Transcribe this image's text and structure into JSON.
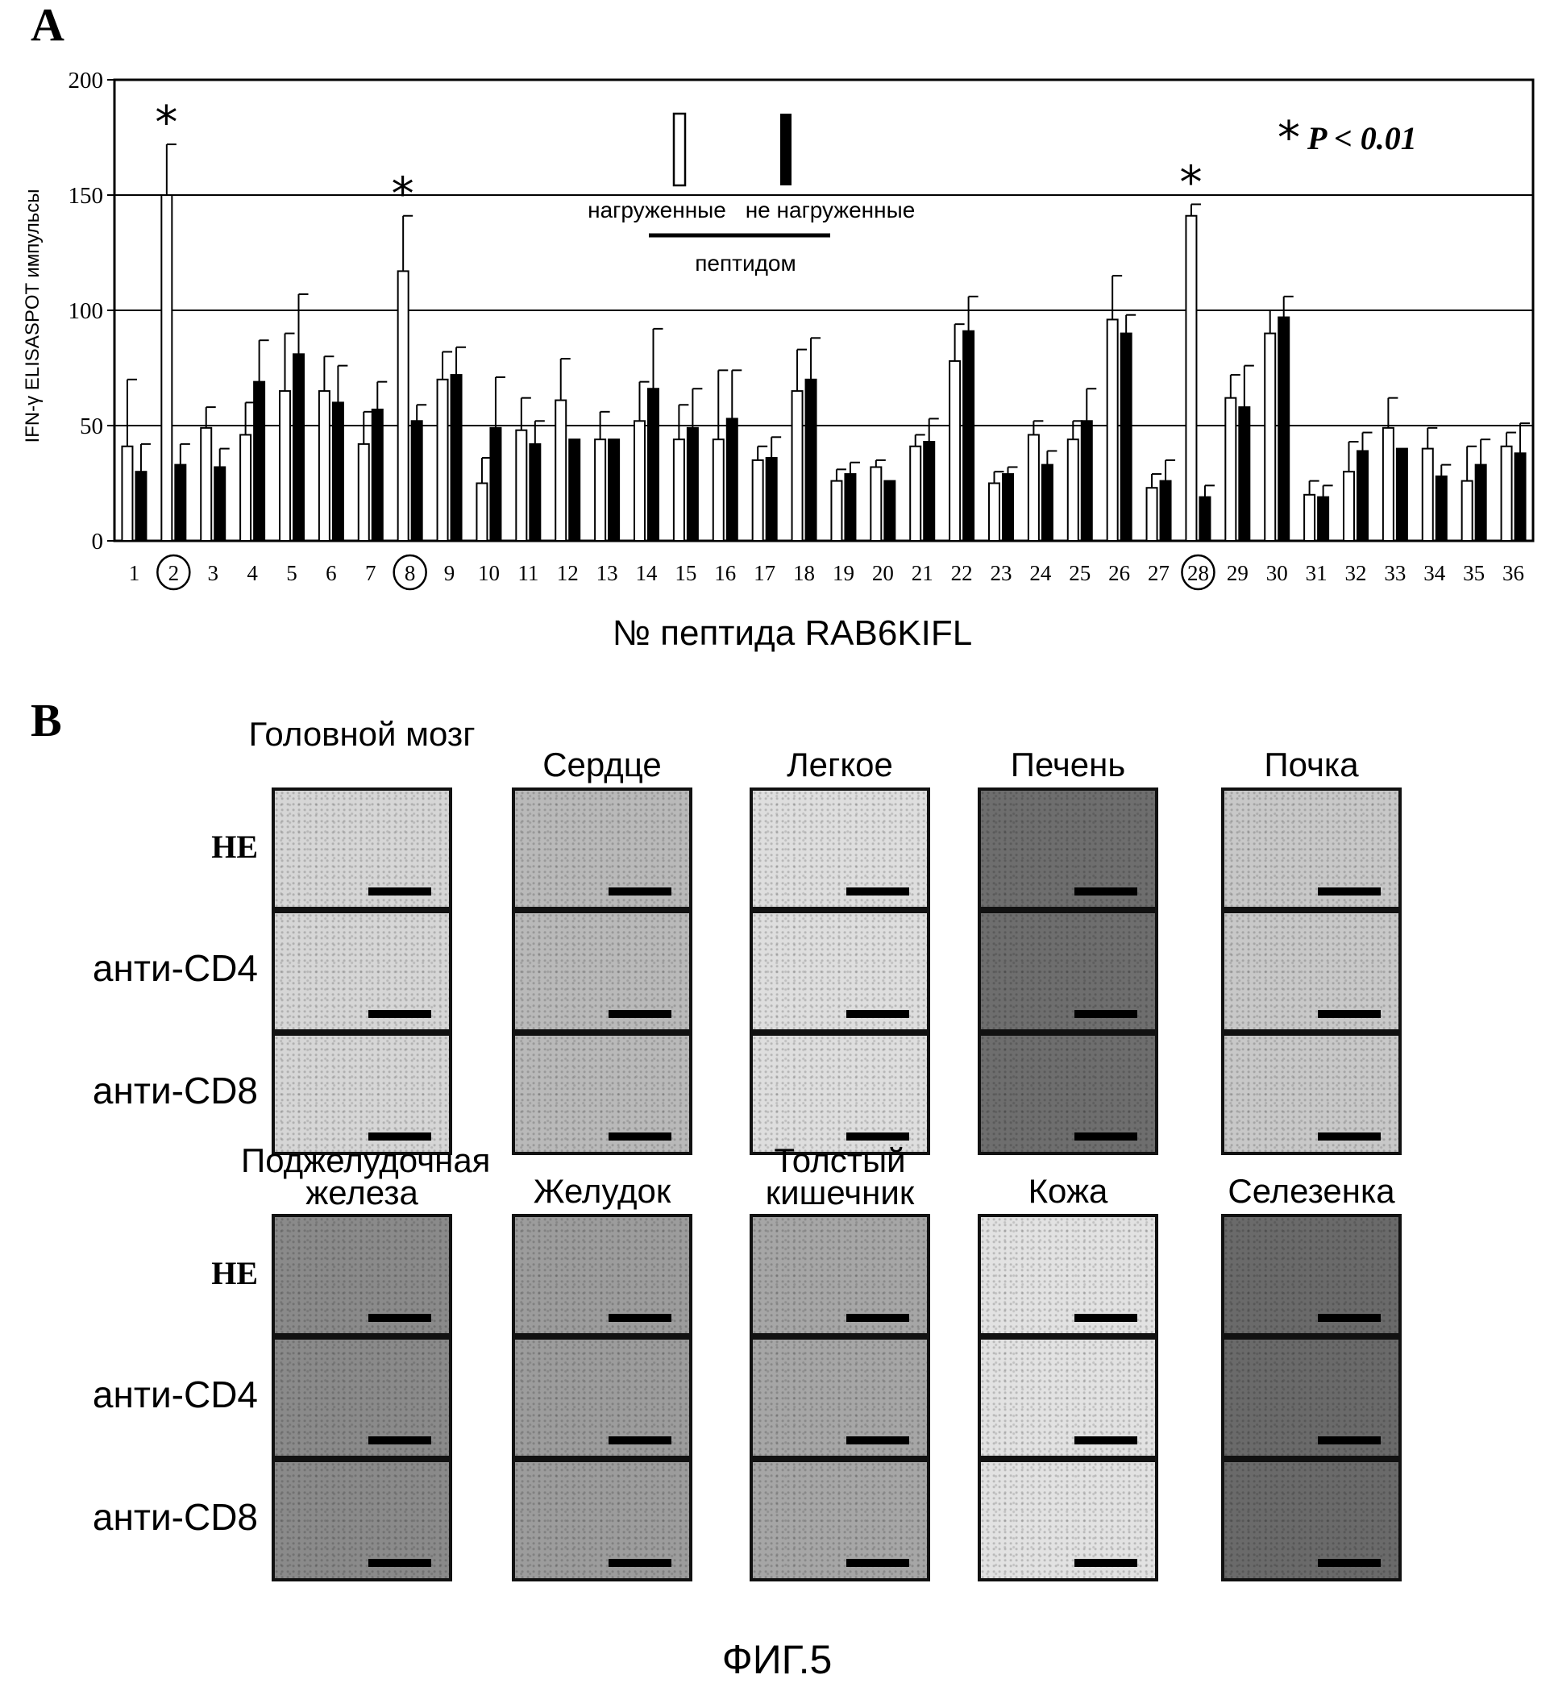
{
  "panel_a_label": "A",
  "chart_data": {
    "type": "bar",
    "title": "",
    "xlabel": "№ пептида RAB6KIFL",
    "ylabel": "IFN-γ ELISASPOT импульсы",
    "ylim": [
      0,
      200
    ],
    "yticks": [
      0,
      50,
      100,
      150,
      200
    ],
    "grid_y": [
      50,
      100,
      150
    ],
    "categories": [
      "1",
      "2",
      "3",
      "4",
      "5",
      "6",
      "7",
      "8",
      "9",
      "10",
      "11",
      "12",
      "13",
      "14",
      "15",
      "16",
      "17",
      "18",
      "19",
      "20",
      "21",
      "22",
      "23",
      "24",
      "25",
      "26",
      "27",
      "28",
      "29",
      "30",
      "31",
      "32",
      "33",
      "34",
      "35",
      "36"
    ],
    "circled_categories": [
      "2",
      "8",
      "28"
    ],
    "significant_categories": [
      "2",
      "8",
      "28"
    ],
    "significance_symbol": "*",
    "significance_note": "P < 0.01",
    "legend": {
      "loaded": "нагруженные",
      "unloaded": "не нагруженные",
      "group_label": "пептидом"
    },
    "series": [
      {
        "name": "нагруженные",
        "color": "#ffffff",
        "values": [
          41,
          150,
          49,
          46,
          65,
          65,
          42,
          117,
          70,
          25,
          48,
          61,
          44,
          52,
          44,
          44,
          35,
          65,
          26,
          32,
          41,
          78,
          25,
          46,
          44,
          96,
          23,
          141,
          62,
          90,
          20,
          30,
          49,
          40,
          26,
          41
        ],
        "errors": [
          29,
          22,
          9,
          14,
          25,
          15,
          14,
          24,
          12,
          11,
          14,
          18,
          12,
          17,
          15,
          30,
          6,
          18,
          5,
          3,
          5,
          16,
          5,
          6,
          8,
          19,
          6,
          5,
          10,
          10,
          6,
          13,
          13,
          9,
          15,
          6
        ]
      },
      {
        "name": "не нагруженные",
        "color": "#000000",
        "values": [
          30,
          33,
          32,
          69,
          81,
          60,
          57,
          52,
          72,
          49,
          42,
          44,
          44,
          66,
          49,
          53,
          36,
          70,
          29,
          26,
          43,
          91,
          29,
          33,
          52,
          90,
          26,
          19,
          58,
          97,
          19,
          39,
          40,
          28,
          33,
          38
        ],
        "errors": [
          12,
          9,
          8,
          18,
          26,
          16,
          12,
          7,
          12,
          22,
          10,
          0,
          0,
          26,
          17,
          21,
          9,
          18,
          5,
          0,
          10,
          15,
          3,
          6,
          14,
          8,
          9,
          5,
          18,
          9,
          5,
          8,
          0,
          5,
          11,
          13
        ]
      }
    ]
  },
  "panel_b": {
    "label": "B",
    "row_labels": [
      "HE",
      "анти-CD4",
      "анти-CD8"
    ],
    "groups": [
      {
        "columns": [
          {
            "title": "Головной мозг",
            "tone": "#d6d6d6"
          },
          {
            "title": "Сердце",
            "tone": "#b9b9b9"
          },
          {
            "title": "Легкое",
            "tone": "#dedede"
          },
          {
            "title": "Печень",
            "tone": "#6e6e6e"
          },
          {
            "title": "Почка",
            "tone": "#c8c8c8"
          }
        ]
      },
      {
        "columns": [
          {
            "title": "Поджелудочная железа",
            "tone": "#8a8a8a"
          },
          {
            "title": "Желудок",
            "tone": "#9c9c9c"
          },
          {
            "title": "Толстый кишечник",
            "tone": "#a6a6a6"
          },
          {
            "title": "Кожа",
            "tone": "#e2e2e2"
          },
          {
            "title": "Селезенка",
            "tone": "#6a6a6a"
          }
        ]
      }
    ]
  },
  "figure_caption": "ФИГ.5"
}
